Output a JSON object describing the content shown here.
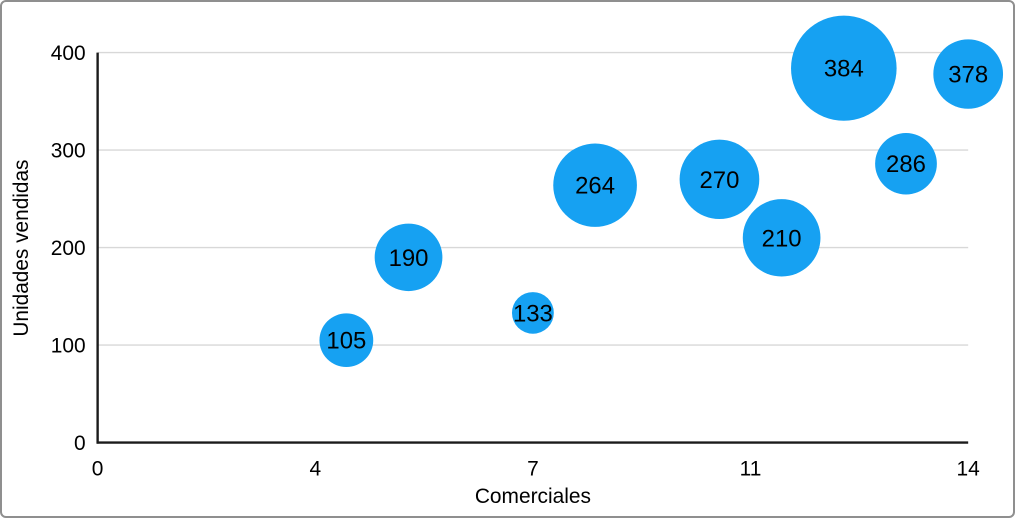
{
  "chart_data": {
    "type": "scatter",
    "variant": "bubble",
    "title": "",
    "xlabel": "Comerciales",
    "ylabel": "Unidades vendidas",
    "xlim": [
      0,
      14
    ],
    "ylim": [
      0,
      400
    ],
    "grid": "horizontal",
    "legend": "none",
    "x_ticks": [
      {
        "value": 0,
        "label": "0"
      },
      {
        "value": 3.5,
        "label": "4"
      },
      {
        "value": 7,
        "label": "7"
      },
      {
        "value": 10.5,
        "label": "11"
      },
      {
        "value": 14,
        "label": "14"
      }
    ],
    "y_ticks": [
      {
        "value": 0,
        "label": "0"
      },
      {
        "value": 100,
        "label": "100"
      },
      {
        "value": 200,
        "label": "200"
      },
      {
        "value": 300,
        "label": "300"
      },
      {
        "value": 400,
        "label": "400"
      }
    ],
    "points": [
      {
        "x": 4,
        "y": 105,
        "label": "105",
        "radius_px": 27
      },
      {
        "x": 5,
        "y": 190,
        "label": "190",
        "radius_px": 34
      },
      {
        "x": 7,
        "y": 133,
        "label": "133",
        "radius_px": 21
      },
      {
        "x": 8,
        "y": 264,
        "label": "264",
        "radius_px": 42
      },
      {
        "x": 10,
        "y": 270,
        "label": "270",
        "radius_px": 40
      },
      {
        "x": 11,
        "y": 210,
        "label": "210",
        "radius_px": 39
      },
      {
        "x": 12,
        "y": 384,
        "label": "384",
        "radius_px": 53
      },
      {
        "x": 13,
        "y": 286,
        "label": "286",
        "radius_px": 31
      },
      {
        "x": 14,
        "y": 378,
        "label": "378",
        "radius_px": 35
      }
    ]
  },
  "colors": {
    "bubble_fill": "#16A1F2",
    "axis_line": "#1b1b1b",
    "gridline": "#d8d8d8",
    "text": "#000000",
    "frame_border": "#8f8f8f",
    "background": "#ffffff"
  }
}
